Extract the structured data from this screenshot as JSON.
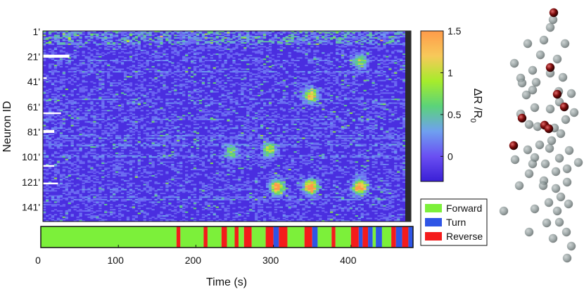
{
  "chart_data": [
    {
      "type": "heatmap",
      "title": "",
      "ylabel": "Neuron ID",
      "xlabel": "",
      "ytick_labels": [
        "1'",
        "21'",
        "41'",
        "61'",
        "81'",
        "101'",
        "121'",
        "141'"
      ],
      "yticks": [
        1,
        21,
        41,
        61,
        81,
        101,
        121,
        141
      ],
      "n_neurons": 152,
      "xlim": [
        0,
        480
      ],
      "colorbar": {
        "label_top": "ΔR /R",
        "label_sub": "0",
        "range": [
          -0.3,
          1.5
        ],
        "tick_labels": [
          "0",
          "0.5",
          "1",
          "1.5"
        ],
        "ticks": [
          0,
          0.5,
          1,
          1.5
        ],
        "colors": [
          "#3a1fd6",
          "#6a4ff2",
          "#6fa0f0",
          "#5bd37a",
          "#a6ec2c",
          "#f7c95a",
          "#ff9b4a"
        ]
      }
    },
    {
      "type": "bar",
      "title": "",
      "xlabel": "Time (s)",
      "xlim": [
        0,
        480
      ],
      "xtick_labels": [
        "0",
        "100",
        "200",
        "300",
        "400"
      ],
      "xticks": [
        0,
        100,
        200,
        300,
        400
      ],
      "legend": [
        {
          "name": "Forward",
          "color": "#7cf03a"
        },
        {
          "name": "Turn",
          "color": "#2f55e6"
        },
        {
          "name": "Reverse",
          "color": "#f41b1b"
        }
      ],
      "legend_position": "right",
      "segments": [
        {
          "start": 0,
          "end": 175,
          "state": "Forward"
        },
        {
          "start": 175,
          "end": 180,
          "state": "Reverse"
        },
        {
          "start": 180,
          "end": 210,
          "state": "Forward"
        },
        {
          "start": 210,
          "end": 215,
          "state": "Reverse"
        },
        {
          "start": 215,
          "end": 233,
          "state": "Forward"
        },
        {
          "start": 233,
          "end": 240,
          "state": "Reverse"
        },
        {
          "start": 240,
          "end": 250,
          "state": "Forward"
        },
        {
          "start": 250,
          "end": 255,
          "state": "Reverse"
        },
        {
          "start": 255,
          "end": 262,
          "state": "Forward"
        },
        {
          "start": 262,
          "end": 272,
          "state": "Reverse"
        },
        {
          "start": 272,
          "end": 290,
          "state": "Forward"
        },
        {
          "start": 290,
          "end": 300,
          "state": "Reverse"
        },
        {
          "start": 300,
          "end": 307,
          "state": "Turn"
        },
        {
          "start": 307,
          "end": 318,
          "state": "Reverse"
        },
        {
          "start": 318,
          "end": 340,
          "state": "Forward"
        },
        {
          "start": 340,
          "end": 350,
          "state": "Reverse"
        },
        {
          "start": 350,
          "end": 357,
          "state": "Turn"
        },
        {
          "start": 357,
          "end": 375,
          "state": "Forward"
        },
        {
          "start": 375,
          "end": 380,
          "state": "Reverse"
        },
        {
          "start": 380,
          "end": 400,
          "state": "Forward"
        },
        {
          "start": 400,
          "end": 410,
          "state": "Reverse"
        },
        {
          "start": 410,
          "end": 415,
          "state": "Turn"
        },
        {
          "start": 415,
          "end": 422,
          "state": "Reverse"
        },
        {
          "start": 422,
          "end": 428,
          "state": "Turn"
        },
        {
          "start": 428,
          "end": 432,
          "state": "Forward"
        },
        {
          "start": 432,
          "end": 440,
          "state": "Turn"
        },
        {
          "start": 440,
          "end": 452,
          "state": "Forward"
        },
        {
          "start": 452,
          "end": 458,
          "state": "Reverse"
        },
        {
          "start": 458,
          "end": 466,
          "state": "Turn"
        },
        {
          "start": 466,
          "end": 474,
          "state": "Reverse"
        },
        {
          "start": 474,
          "end": 480,
          "state": "Turn"
        }
      ]
    },
    {
      "type": "scatter",
      "title": "",
      "description_units": "3D neuron positions (no axes)",
      "colors": {
        "grey": "#7d8a8a",
        "red": "#7a0a0a"
      },
      "points_grey": [
        [
          786,
          28
        ],
        [
          782,
          39
        ],
        [
          750,
          62
        ],
        [
          803,
          62
        ],
        [
          773,
          57
        ],
        [
          792,
          84
        ],
        [
          757,
          100
        ],
        [
          731,
          90
        ],
        [
          740,
          111
        ],
        [
          757,
          128
        ],
        [
          748,
          135
        ],
        [
          762,
          117
        ],
        [
          782,
          104
        ],
        [
          800,
          110
        ],
        [
          812,
          133
        ],
        [
          795,
          145
        ],
        [
          782,
          155
        ],
        [
          760,
          153
        ],
        [
          740,
          162
        ],
        [
          752,
          177
        ],
        [
          764,
          180
        ],
        [
          788,
          182
        ],
        [
          804,
          170
        ],
        [
          816,
          160
        ],
        [
          797,
          190
        ],
        [
          784,
          200
        ],
        [
          767,
          206
        ],
        [
          750,
          213
        ],
        [
          732,
          227
        ],
        [
          760,
          224
        ],
        [
          775,
          233
        ],
        [
          795,
          225
        ],
        [
          809,
          214
        ],
        [
          752,
          247
        ],
        [
          773,
          257
        ],
        [
          790,
          244
        ],
        [
          806,
          240
        ],
        [
          738,
          264
        ],
        [
          790,
          268
        ],
        [
          806,
          259
        ],
        [
          797,
          280
        ],
        [
          780,
          288
        ],
        [
          760,
          297
        ],
        [
          792,
          300
        ],
        [
          808,
          290
        ],
        [
          777,
          317
        ],
        [
          795,
          316
        ],
        [
          805,
          330
        ],
        [
          752,
          330
        ],
        [
          786,
          339
        ],
        [
          812,
          350
        ],
        [
          806,
          367
        ],
        [
          716,
          300
        ],
        [
          757,
          233
        ],
        [
          772,
          264
        ],
        [
          742,
          118
        ],
        [
          822,
          231
        ],
        [
          781,
          211
        ],
        [
          794,
          130
        ],
        [
          768,
          78
        ]
      ],
      "points_red": [
        [
          787,
          18
        ],
        [
          782,
          96
        ],
        [
          792,
          134
        ],
        [
          802,
          152
        ],
        [
          742,
          168
        ],
        [
          774,
          178
        ],
        [
          780,
          183
        ],
        [
          730,
          207
        ]
      ]
    }
  ]
}
